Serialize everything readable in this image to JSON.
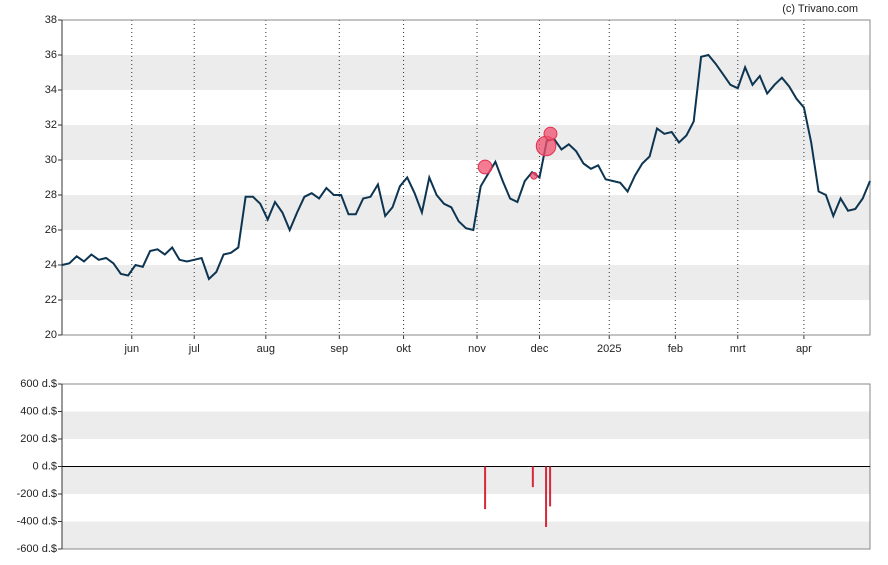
{
  "credit": "(c) Trivano.com",
  "chart_data": [
    {
      "type": "line",
      "color": "#0d3552",
      "x": [
        0,
        2,
        4,
        6,
        8,
        10,
        12,
        14,
        16,
        18,
        20,
        22,
        24,
        26,
        28,
        30,
        32,
        34,
        36,
        38,
        40,
        42,
        44,
        46,
        48,
        50,
        52,
        54,
        56,
        58,
        60,
        62,
        64,
        66,
        68,
        70,
        72,
        74,
        76,
        78,
        80,
        82,
        84,
        86,
        88,
        90,
        92,
        94,
        96,
        98,
        100,
        102,
        104,
        106,
        108,
        110,
        112,
        114,
        116,
        118,
        120,
        122,
        124,
        126,
        128,
        130,
        132,
        134,
        136,
        138,
        140,
        142,
        144,
        146,
        148,
        150,
        152,
        154,
        156,
        158,
        160,
        162,
        164,
        166,
        168,
        170,
        172,
        174,
        176,
        178,
        180,
        182,
        184,
        186,
        188,
        190,
        192,
        194,
        196,
        198,
        200,
        202,
        204,
        206,
        208,
        210,
        212,
        214,
        216,
        218,
        220
      ],
      "values": [
        24.0,
        24.1,
        24.5,
        24.2,
        24.6,
        24.3,
        24.4,
        24.1,
        23.5,
        23.4,
        24.0,
        23.9,
        24.8,
        24.9,
        24.6,
        25.0,
        24.3,
        24.2,
        24.3,
        24.4,
        23.2,
        23.6,
        24.6,
        24.7,
        25.0,
        27.9,
        27.9,
        27.5,
        26.6,
        27.6,
        27.0,
        26.0,
        27.0,
        27.9,
        28.1,
        27.8,
        28.4,
        28.0,
        28.0,
        26.9,
        26.9,
        27.8,
        27.9,
        28.6,
        26.8,
        27.3,
        28.5,
        29.0,
        28.1,
        27.0,
        29.0,
        28.0,
        27.5,
        27.3,
        26.5,
        26.1,
        26.0,
        28.5,
        29.2,
        29.9,
        28.8,
        27.8,
        27.6,
        28.8,
        29.3,
        29.0,
        31.1,
        31.2,
        30.6,
        30.9,
        30.5,
        29.8,
        29.5,
        29.7,
        28.9,
        28.8,
        28.7,
        28.2,
        29.1,
        29.8,
        30.2,
        31.8,
        31.5,
        31.6,
        31.0,
        31.4,
        32.2,
        35.9,
        36.0,
        35.5,
        34.9,
        34.3,
        34.1,
        35.3,
        34.3,
        34.8,
        33.8,
        34.3,
        34.7,
        34.2,
        33.5,
        33.0,
        31.0,
        28.2,
        28.0,
        26.8,
        27.8,
        27.1,
        27.2,
        27.8,
        28.8
      ],
      "markers": {
        "color": "#f0506e",
        "x": [
          115.2,
          128.5,
          131.8,
          133.0
        ],
        "values": [
          29.6,
          29.1,
          30.8,
          31.5
        ]
      },
      "xlim": [
        0,
        220
      ],
      "xticks": [
        {
          "value": 19,
          "label": "jun"
        },
        {
          "value": 36,
          "label": "jul"
        },
        {
          "value": 55.5,
          "label": "aug"
        },
        {
          "value": 75.5,
          "label": "sep"
        },
        {
          "value": 93,
          "label": "okt"
        },
        {
          "value": 113,
          "label": "nov"
        },
        {
          "value": 130,
          "label": "dec"
        },
        {
          "value": 149,
          "label": "2025"
        },
        {
          "value": 167,
          "label": "feb"
        },
        {
          "value": 184,
          "label": "mrt"
        },
        {
          "value": 202,
          "label": "apr"
        }
      ],
      "ylim": [
        20,
        38
      ],
      "yticks": [
        20,
        22,
        24,
        26,
        28,
        30,
        32,
        34,
        36,
        38
      ]
    },
    {
      "type": "bar",
      "color": "#d62839",
      "x": [
        115.2,
        128.2,
        131.8,
        132.9
      ],
      "values": [
        -310,
        -150,
        -440,
        -290
      ],
      "xlim": [
        0,
        220
      ],
      "ylim": [
        -600,
        600
      ],
      "yticks": [
        {
          "value": -600,
          "label": "-600 d.$"
        },
        {
          "value": -400,
          "label": "-400 d.$"
        },
        {
          "value": -200,
          "label": "-200 d.$"
        },
        {
          "value": 0,
          "label": "0 d.$"
        },
        {
          "value": 200,
          "label": "200 d.$"
        },
        {
          "value": 400,
          "label": "400 d.$"
        },
        {
          "value": 600,
          "label": "600 d.$"
        }
      ]
    }
  ]
}
